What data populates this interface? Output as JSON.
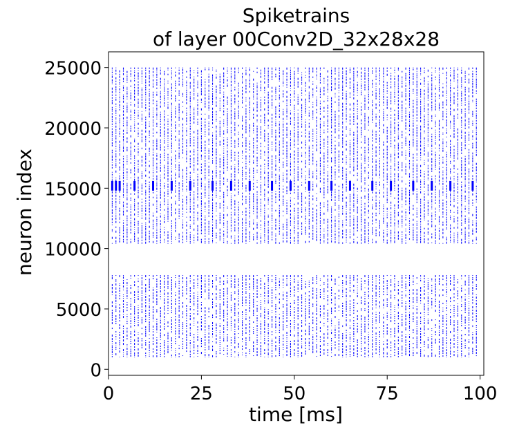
{
  "chart_data": {
    "type": "scatter",
    "title_line1": "Spiketrains",
    "title_line2": "of layer 00Conv2D_32x28x28",
    "xlabel": "time [ms]",
    "ylabel": "neuron index",
    "xlim": [
      0,
      101
    ],
    "ylim": [
      -500,
      26300
    ],
    "xticks": [
      0,
      25,
      50,
      75,
      100
    ],
    "yticks": [
      0,
      5000,
      10000,
      15000,
      20000,
      25000
    ],
    "marker_color": "#0000ff",
    "grid": false,
    "legend": "none",
    "series": [
      {
        "neuron_ranges": [
          [
            1000,
            7800
          ],
          [
            10400,
            25000
          ]
        ],
        "spike_times_ms": [
          1,
          2,
          3,
          4,
          5,
          6,
          7,
          8,
          9,
          10,
          11,
          12,
          13,
          14,
          15,
          16,
          17,
          18,
          19,
          20,
          21,
          22,
          23,
          24,
          25,
          26,
          27,
          28,
          29,
          30,
          31,
          32,
          33,
          34,
          35,
          36,
          37,
          38,
          39,
          40,
          41,
          42,
          43,
          44,
          45,
          46,
          47,
          48,
          49,
          50,
          51,
          52,
          53,
          54,
          55,
          56,
          57,
          58,
          59,
          60,
          61,
          62,
          63,
          64,
          65,
          66,
          67,
          68,
          69,
          70,
          71,
          72,
          73,
          74,
          75,
          76,
          77,
          78,
          79,
          80,
          81,
          82,
          83,
          84,
          85,
          86,
          87,
          88,
          89,
          90,
          91,
          92,
          93,
          94,
          95,
          96,
          97,
          98,
          99
        ]
      }
    ],
    "dense_burst": {
      "neuron_range": [
        14800,
        15600
      ],
      "times_ms": [
        1,
        2,
        3,
        7,
        12,
        17,
        22,
        28,
        33,
        38,
        44,
        49,
        54,
        60,
        65,
        71,
        76,
        82,
        87,
        92,
        98
      ]
    }
  }
}
